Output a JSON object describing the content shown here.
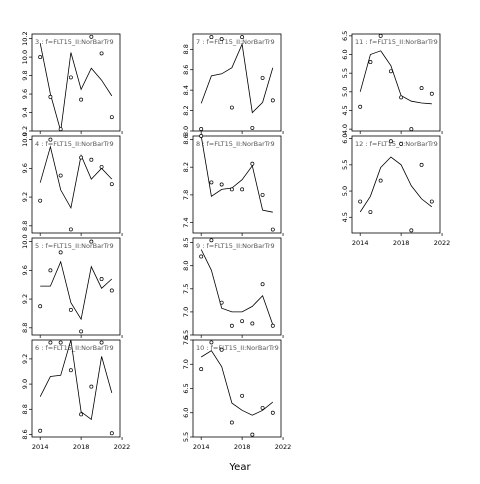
{
  "xlabel": "Year",
  "chart_data": [
    {
      "type": "line",
      "title": "3 : f=FLT15_II:NorBarTr9",
      "xlim": [
        2013.2,
        2021.8
      ],
      "ylim": [
        9.2,
        10.25
      ],
      "yticks": [
        "9.2",
        "9.4",
        "9.6",
        "9.8",
        "10.0",
        "10.2"
      ],
      "years": [
        2014,
        2015,
        2016,
        2017,
        2018,
        2019,
        2020,
        2021
      ],
      "points": [
        10.0,
        9.57,
        9.22,
        9.78,
        9.54,
        10.22,
        10.04,
        9.35
      ],
      "line": [
        10.15,
        9.6,
        9.2,
        10.05,
        9.65,
        9.88,
        9.75,
        9.58
      ]
    },
    {
      "type": "line",
      "title": "4 : f=FLT15_II:NorBarTr9",
      "xlim": [
        2013.2,
        2021.8
      ],
      "ylim": [
        8.7,
        10.05
      ],
      "yticks": [
        "8.8",
        "9.2",
        "9.6",
        "10.0"
      ],
      "years": [
        2014,
        2015,
        2016,
        2017,
        2018,
        2019,
        2020,
        2021
      ],
      "points": [
        9.15,
        10.0,
        9.5,
        8.75,
        9.75,
        9.72,
        9.62,
        9.38
      ],
      "line": [
        9.4,
        9.9,
        9.3,
        9.05,
        9.78,
        9.45,
        9.6,
        9.45
      ]
    },
    {
      "type": "line",
      "title": "5 : f=FLT15_II:NorBarTr9",
      "xlim": [
        2013.2,
        2021.8
      ],
      "ylim": [
        8.7,
        10.05
      ],
      "yticks": [
        "8.8",
        "9.2",
        "9.6",
        "10.0"
      ],
      "years": [
        2014,
        2015,
        2016,
        2017,
        2018,
        2019,
        2020,
        2021
      ],
      "points": [
        9.1,
        9.6,
        9.85,
        9.05,
        8.75,
        10.0,
        9.48,
        9.32
      ],
      "line": [
        9.38,
        9.38,
        9.72,
        9.15,
        8.92,
        9.65,
        9.35,
        9.48
      ]
    },
    {
      "type": "line",
      "title": "6 : f=FLT15_II:NorBarTr9",
      "xlim": [
        2013.2,
        2021.8
      ],
      "ylim": [
        8.58,
        9.35
      ],
      "yticks": [
        "8.6",
        "8.8",
        "9.0",
        "9.2"
      ],
      "years": [
        2014,
        2015,
        2016,
        2017,
        2018,
        2019,
        2020,
        2021
      ],
      "points": [
        8.63,
        9.33,
        9.33,
        9.11,
        8.76,
        8.98,
        9.33,
        8.61
      ],
      "line": [
        8.9,
        9.06,
        9.07,
        9.35,
        8.78,
        8.72,
        9.22,
        8.93
      ]
    },
    {
      "type": "line",
      "title": "7 : f=FLT15_II:NorBarTr9",
      "xlim": [
        2013.2,
        2021.8
      ],
      "ylim": [
        8.0,
        8.95
      ],
      "yticks": [
        "8.0",
        "8.2",
        "8.4",
        "8.6",
        "8.8"
      ],
      "years": [
        2014,
        2015,
        2016,
        2017,
        2018,
        2019,
        2020,
        2021
      ],
      "points": [
        8.02,
        8.92,
        8.9,
        8.23,
        8.92,
        8.03,
        8.52,
        8.3
      ],
      "line": [
        8.27,
        8.54,
        8.56,
        8.62,
        8.85,
        8.18,
        8.28,
        8.62
      ]
    },
    {
      "type": "line",
      "title": "8 : f=FLT15_II:NorBarTr9",
      "xlim": [
        2013.2,
        2021.8
      ],
      "ylim": [
        7.25,
        8.65
      ],
      "yticks": [
        "7.4",
        "7.8",
        "8.2",
        "8.6"
      ],
      "years": [
        2014,
        2015,
        2016,
        2017,
        2018,
        2019,
        2020,
        2021
      ],
      "points": [
        8.65,
        7.98,
        7.95,
        7.88,
        7.88,
        8.25,
        7.8,
        7.3
      ],
      "line": [
        8.65,
        7.78,
        7.88,
        7.9,
        8.02,
        8.22,
        7.58,
        7.55
      ]
    },
    {
      "type": "line",
      "title": "9 : f=FLT15_II:NorBarTr9",
      "xlim": [
        2013.2,
        2021.8
      ],
      "ylim": [
        6.5,
        8.6
      ],
      "yticks": [
        "6.5",
        "7.0",
        "7.5",
        "8.0",
        "8.5"
      ],
      "years": [
        2014,
        2015,
        2016,
        2017,
        2018,
        2019,
        2020,
        2021
      ],
      "points": [
        8.2,
        8.55,
        7.2,
        6.7,
        6.8,
        6.75,
        7.6,
        6.7
      ],
      "line": [
        8.35,
        7.9,
        7.08,
        7.0,
        7.0,
        7.12,
        7.35,
        6.72
      ]
    },
    {
      "type": "line",
      "title": "10 : f=FLT15_II:NorBarTr9",
      "xlim": [
        2013.2,
        2021.8
      ],
      "ylim": [
        5.5,
        7.5
      ],
      "yticks": [
        "5.5",
        "6.0",
        "6.5",
        "7.0",
        "7.5"
      ],
      "years": [
        2014,
        2015,
        2016,
        2017,
        2018,
        2019,
        2020,
        2021
      ],
      "points": [
        6.9,
        7.45,
        7.3,
        5.8,
        6.35,
        5.55,
        6.1,
        6.0
      ],
      "line": [
        7.15,
        7.28,
        6.95,
        6.2,
        6.05,
        5.95,
        6.05,
        6.22
      ]
    },
    {
      "type": "line",
      "title": "11 : f=FLT15_II:NorBarTr9",
      "xlim": [
        2013.2,
        2021.8
      ],
      "ylim": [
        3.95,
        6.55
      ],
      "yticks": [
        "4.0",
        "4.5",
        "5.0",
        "5.5",
        "6.0",
        "6.5"
      ],
      "years": [
        2014,
        2015,
        2016,
        2017,
        2018,
        2019,
        2020,
        2021
      ],
      "points": [
        4.6,
        5.8,
        6.5,
        5.55,
        4.85,
        4.0,
        5.1,
        4.95
      ],
      "line": [
        5.0,
        6.0,
        6.1,
        5.7,
        4.9,
        4.75,
        4.7,
        4.68
      ]
    },
    {
      "type": "line",
      "title": "12 : f=FLT15_II:NorBarTr9",
      "xlim": [
        2013.2,
        2021.8
      ],
      "ylim": [
        4.2,
        6.05
      ],
      "yticks": [
        "4.5",
        "5.0",
        "5.5",
        "6.0"
      ],
      "years": [
        2014,
        2015,
        2016,
        2017,
        2018,
        2019,
        2020,
        2021
      ],
      "points": [
        4.8,
        4.6,
        5.2,
        5.95,
        5.9,
        4.25,
        5.5,
        4.8
      ],
      "line": [
        4.6,
        4.9,
        5.45,
        5.65,
        5.5,
        5.1,
        4.85,
        4.7
      ]
    }
  ],
  "xticks": [
    "2014",
    "2018",
    "2022"
  ]
}
